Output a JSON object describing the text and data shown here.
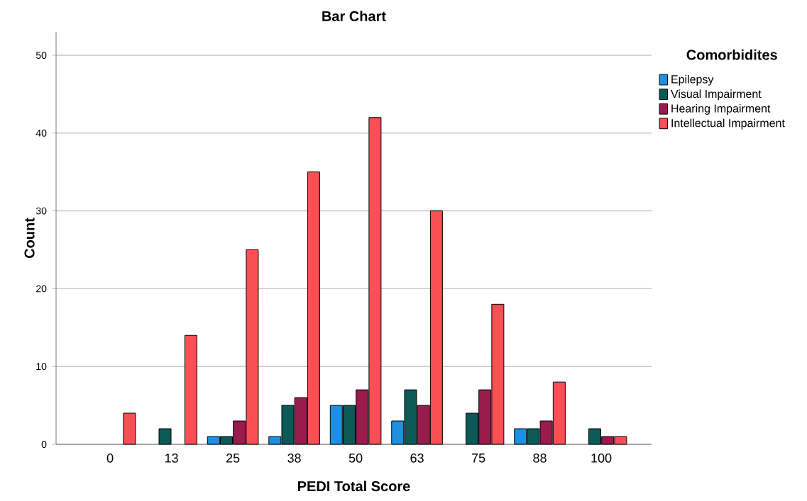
{
  "chart_data": {
    "type": "bar",
    "title": "Bar Chart",
    "xlabel": "PEDI Total Score",
    "ylabel": "Count",
    "legend_title": "Comorbidites",
    "categories": [
      "0",
      "13",
      "25",
      "38",
      "50",
      "63",
      "75",
      "88",
      "100"
    ],
    "series": [
      {
        "name": "Epilepsy",
        "color": "#1e8fe1",
        "values": [
          null,
          null,
          1,
          1,
          5,
          3,
          null,
          2,
          null
        ]
      },
      {
        "name": "Visual Impairment",
        "color": "#0b5a58",
        "values": [
          null,
          2,
          1,
          5,
          5,
          7,
          4,
          2,
          2
        ]
      },
      {
        "name": "Hearing Impairment",
        "color": "#9a1b4e",
        "values": [
          null,
          null,
          3,
          6,
          7,
          5,
          7,
          3,
          1
        ]
      },
      {
        "name": "Intellectual Impairment",
        "color": "#f94f55",
        "values": [
          4,
          14,
          25,
          35,
          42,
          30,
          18,
          8,
          1
        ]
      }
    ],
    "ylim": [
      0,
      53
    ],
    "yticks": [
      0,
      10,
      20,
      30,
      40,
      50
    ],
    "grid": "y",
    "legend": "right"
  }
}
